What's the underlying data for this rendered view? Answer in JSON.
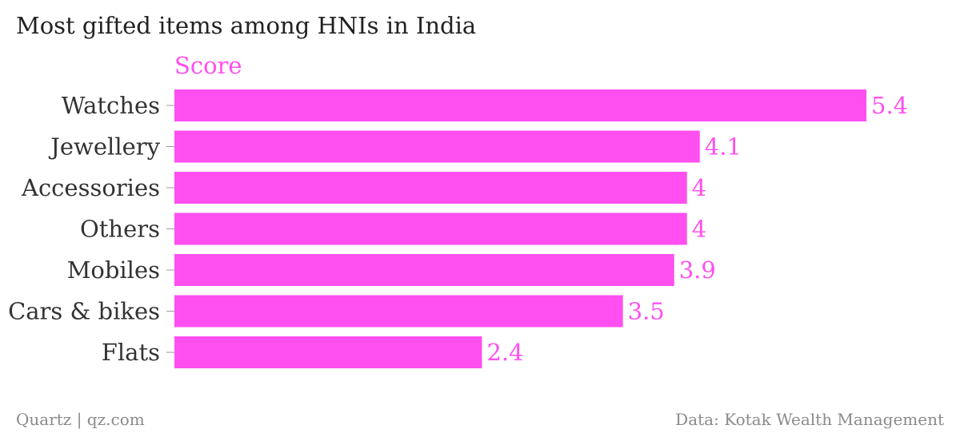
{
  "colors": {
    "bar": "#ff4ff0",
    "accent_text": "#ff4ff0",
    "title_text": "#222222",
    "label_text": "#333333",
    "tick": "#9a9a9a",
    "footer_text": "#8a8a8a"
  },
  "footer": {
    "left": "Quartz | qz.com",
    "right": "Data: Kotak Wealth Management"
  },
  "chart_data": {
    "type": "bar",
    "orientation": "horizontal",
    "title": "Most gifted items among HNIs in India",
    "categories": [
      "Watches",
      "Jewellery",
      "Accessories",
      "Others",
      "Mobiles",
      "Cars & bikes",
      "Flats"
    ],
    "series": [
      {
        "name": "Score",
        "values": [
          5.4,
          4.1,
          4,
          4,
          3.9,
          3.5,
          2.4
        ],
        "value_labels": [
          "5.4",
          "4.1",
          "4",
          "4",
          "3.9",
          "3.5",
          "2.4"
        ]
      }
    ],
    "xlim": [
      0,
      5.4
    ],
    "grid": false,
    "legend": "top-left"
  }
}
